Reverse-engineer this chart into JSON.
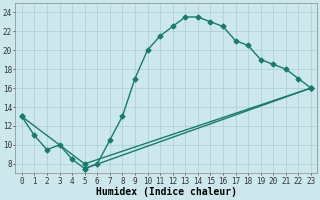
{
  "xlabel": "Humidex (Indice chaleur)",
  "background_color": "#cce8ec",
  "grid_color": "#aacdd4",
  "line_color": "#1a7a6e",
  "xlim": [
    -0.5,
    23.5
  ],
  "ylim": [
    7,
    25
  ],
  "xticks": [
    0,
    1,
    2,
    3,
    4,
    5,
    6,
    7,
    8,
    9,
    10,
    11,
    12,
    13,
    14,
    15,
    16,
    17,
    18,
    19,
    20,
    21,
    22,
    23
  ],
  "yticks": [
    8,
    10,
    12,
    14,
    16,
    18,
    20,
    22,
    24
  ],
  "curve_x": [
    0,
    1,
    2,
    3,
    4,
    5,
    6,
    7,
    8,
    9,
    10,
    11,
    12,
    13,
    14,
    15,
    16,
    17,
    18,
    19,
    20,
    21,
    22,
    23
  ],
  "curve_y": [
    13,
    11,
    9.5,
    10,
    8.5,
    7.5,
    8,
    10.5,
    13,
    17,
    20,
    21.5,
    22.5,
    23.5,
    23.5,
    23,
    22.5,
    21,
    20.5,
    19,
    18.5,
    18,
    17,
    16
  ],
  "line1_x": [
    0,
    5,
    23
  ],
  "line1_y": [
    13,
    8,
    16
  ],
  "line2_x": [
    5,
    23
  ],
  "line2_y": [
    7.5,
    16
  ],
  "markersize": 2.5,
  "linewidth": 1.0,
  "tick_fontsize": 5.5,
  "xlabel_fontsize": 7
}
